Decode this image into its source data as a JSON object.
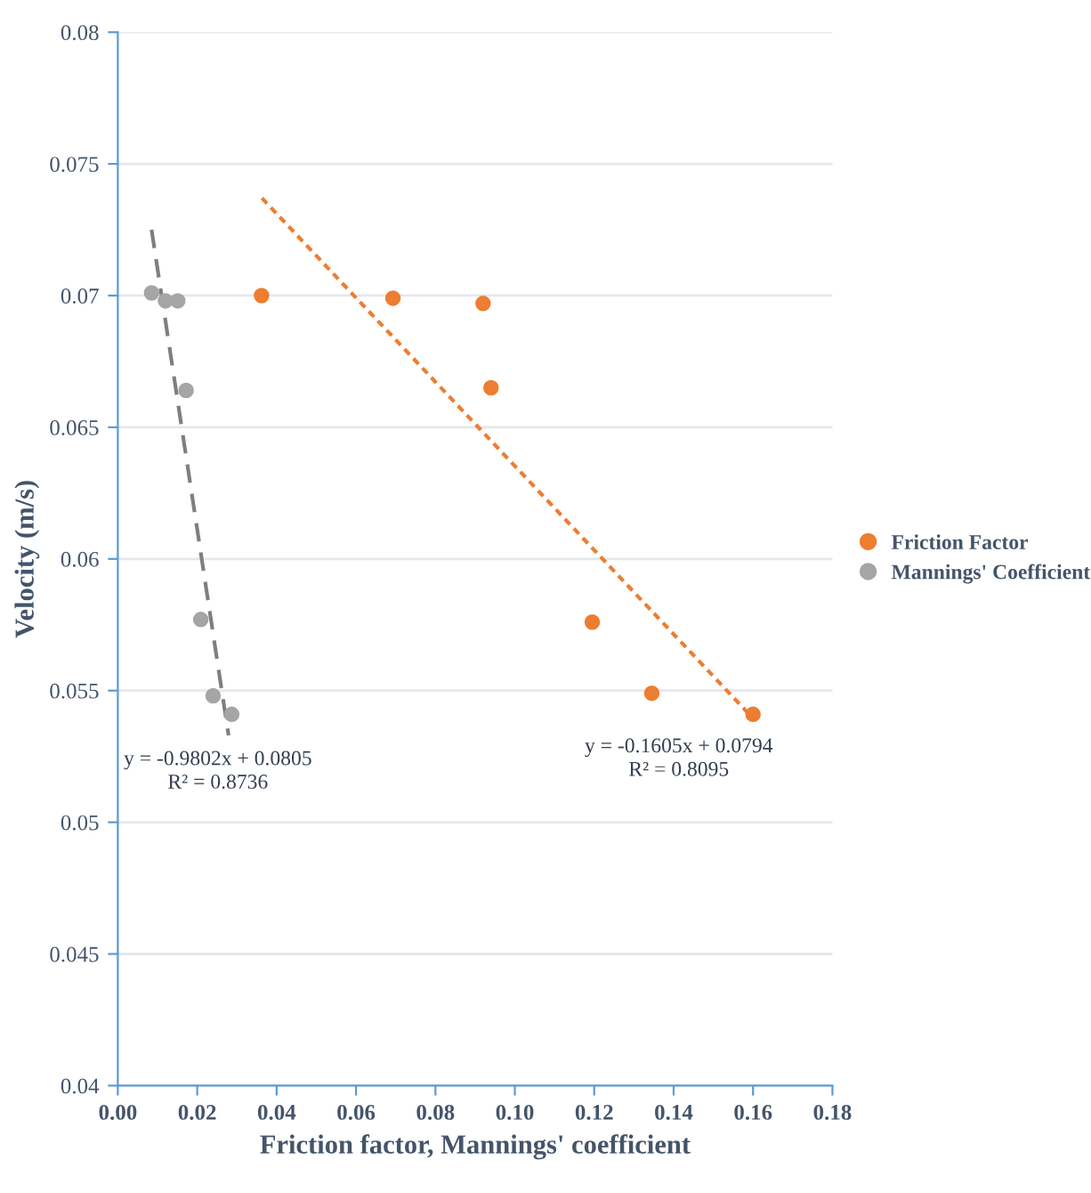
{
  "chart_data": {
    "type": "scatter",
    "xlabel": "Friction factor, Mannings' coefficient",
    "ylabel": "Velocity (m/s)",
    "xlim": [
      0,
      0.18
    ],
    "xticks": [
      {
        "value": 0,
        "label": "0.00"
      },
      {
        "value": 0.02,
        "label": "0.02"
      },
      {
        "value": 0.04,
        "label": "0.04"
      },
      {
        "value": 0.06,
        "label": "0.06"
      },
      {
        "value": 0.08,
        "label": "0.08"
      },
      {
        "value": 0.1,
        "label": "0.10"
      },
      {
        "value": 0.12,
        "label": "0.12"
      },
      {
        "value": 0.14,
        "label": "0.14"
      },
      {
        "value": 0.16,
        "label": "0.16"
      },
      {
        "value": 0.18,
        "label": "0.18"
      }
    ],
    "ylim": [
      0.04,
      0.08
    ],
    "yticks": [
      0.04,
      0.045,
      0.05,
      0.055,
      0.06,
      0.065,
      0.07,
      0.075,
      0.08
    ],
    "grid": "y",
    "legend": "right",
    "marker": "circle",
    "series": [
      {
        "name": "Friction Factor",
        "color": "#ed7d31",
        "x": [
          0.0362,
          0.0693,
          0.092,
          0.094,
          0.1195,
          0.1345,
          0.16
        ],
        "values": [
          0.07,
          0.0699,
          0.0697,
          0.0665,
          0.0576,
          0.0549,
          0.0541
        ]
      },
      {
        "name": "Mannings' Coefficient",
        "color": "#a5a5a5",
        "x": [
          0.0085,
          0.012,
          0.0151,
          0.0172,
          0.0209,
          0.024,
          0.0287
        ],
        "values": [
          0.0701,
          0.0698,
          0.0698,
          0.0664,
          0.0577,
          0.0548,
          0.0541
        ]
      },
      {
        "type": "line",
        "marker": "none",
        "color": "#ed7d31",
        "line_style": "dotted",
        "x": [
          0.0363,
          0.1603
        ],
        "values": [
          0.0737,
          0.0539
        ]
      },
      {
        "type": "line",
        "marker": "none",
        "color": "#7f7f7f",
        "line_style": "dashed",
        "x": [
          0.0085,
          0.0279
        ],
        "values": [
          0.0725,
          0.0533
        ]
      }
    ],
    "annotations": [
      "y = -0.9802x + 0.0805\nR² = 0.8736",
      "y = -0.1605x + 0.0794\nR² = 0.8095"
    ]
  }
}
